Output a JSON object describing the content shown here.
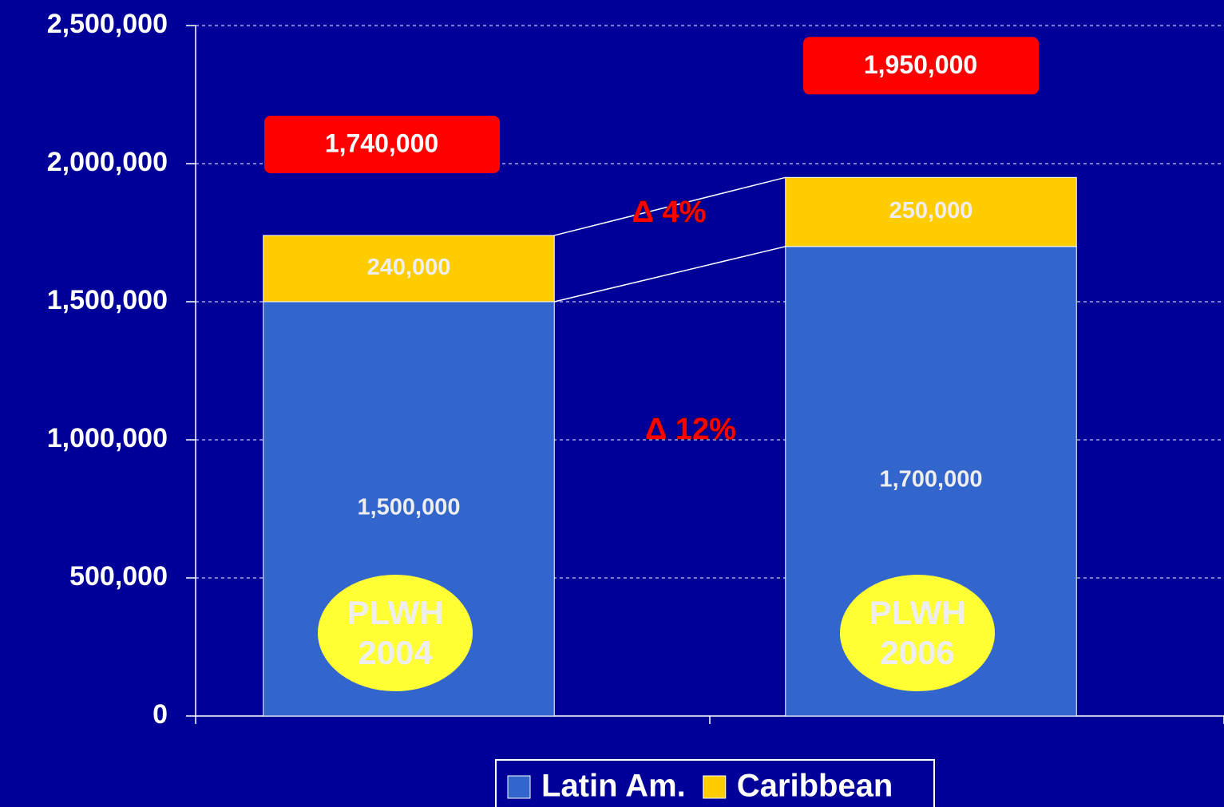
{
  "chart_data": {
    "type": "stacked_bar",
    "categories": [
      "PLWH 2004",
      "PLWH 2006"
    ],
    "series": [
      {
        "name": "Latin Am.",
        "color": "#3366CC",
        "values": [
          1500000,
          1700000
        ],
        "value_labels": [
          "1,500,000",
          "1,700,000"
        ]
      },
      {
        "name": "Caribbean",
        "color": "#FFCC00",
        "values": [
          240000,
          250000
        ],
        "value_labels": [
          "240,000",
          "250,000"
        ]
      }
    ],
    "totals": [
      1740000,
      1950000
    ],
    "total_labels": [
      "1,740,000",
      "1,950,000"
    ],
    "annotations": [
      "Δ 4%",
      "Δ 12%"
    ],
    "ylim": [
      0,
      2500000
    ],
    "yticks": [
      0,
      {
        "value": 500000,
        "label": "500,000"
      },
      {
        "value": 1000000,
        "label": "1,000,000"
      },
      {
        "value": 1500000,
        "label": "1,500,000"
      },
      {
        "value": 2000000,
        "label": "2,000,000"
      },
      {
        "value": 2500000,
        "label": "2,500,000"
      }
    ],
    "grid": true,
    "legend": "bottom"
  }
}
